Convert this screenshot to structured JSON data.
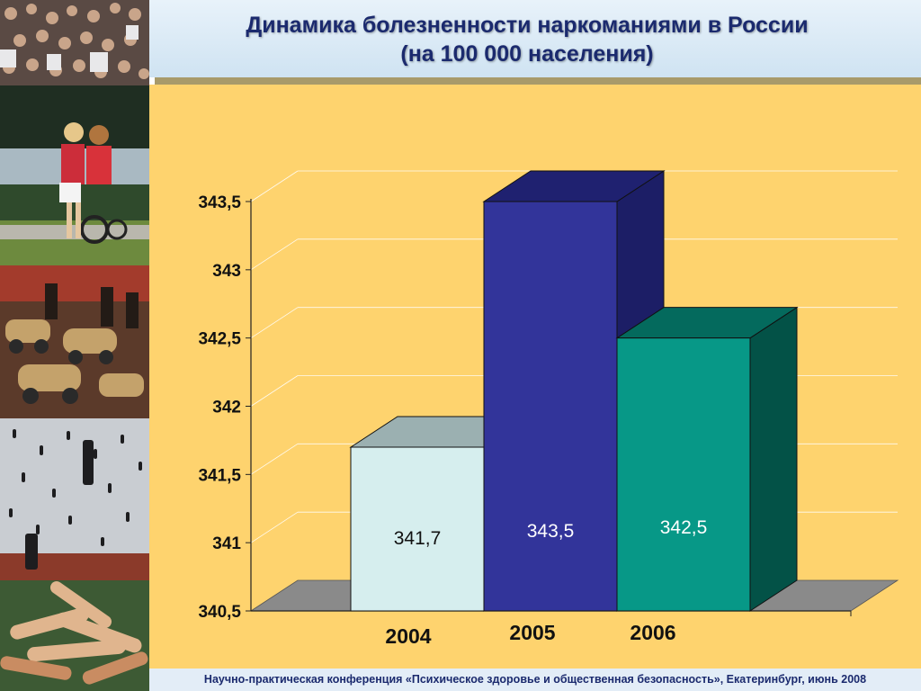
{
  "header": {
    "title_line1": "Динамика болезненности наркоманиями в России",
    "title_line2": "(на 100 000 населения)"
  },
  "footer": {
    "text": "Научно-практическая конференция «Психическое здоровье и общественная безопасность», Екатеринбург, июнь 2008"
  },
  "sidebar": {
    "photos": [
      "crowd-photo",
      "children-bicycle-photo",
      "painting-cars-photo",
      "magritte-golconda-photo",
      "joined-hands-photo"
    ]
  },
  "chart_data": {
    "type": "bar",
    "categories": [
      "2004",
      "2005",
      "2006"
    ],
    "values": [
      341.7,
      343.5,
      342.5
    ],
    "data_labels": [
      "341,7",
      "343,5",
      "342,5"
    ],
    "ylim": [
      340.5,
      343.5
    ],
    "yticks": [
      340.5,
      341,
      341.5,
      342,
      342.5,
      343,
      343.5
    ],
    "ytick_labels": [
      "340,5",
      "341",
      "341,5",
      "342",
      "342,5",
      "343",
      "343,5"
    ],
    "grid": true,
    "colors": {
      "bar_front": [
        "#d6eeee",
        "#32349a",
        "#079887"
      ],
      "bar_top": [
        "#9bb0b1",
        "#1f2170",
        "#046a5d"
      ],
      "bar_side": [
        "#a6bebf",
        "#1c1e66",
        "#035247"
      ],
      "floor": "#8a8a8a",
      "panel": "#fed36e"
    }
  }
}
